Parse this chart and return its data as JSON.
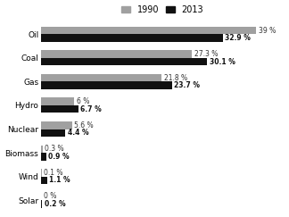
{
  "categories": [
    "Oil",
    "Coal",
    "Gas",
    "Hydro",
    "Nuclear",
    "Biomass",
    "Wind",
    "Solar"
  ],
  "values_1990": [
    39.0,
    27.3,
    21.8,
    6.0,
    5.6,
    0.3,
    0.1,
    0.0
  ],
  "values_2013": [
    32.9,
    30.1,
    23.7,
    6.7,
    4.4,
    0.9,
    1.1,
    0.2
  ],
  "labels_1990": [
    "39 %",
    "27.3 %",
    "21.8 %",
    "6 %",
    "5.6 %",
    "0.3 %",
    "0.1 %",
    "0 %"
  ],
  "labels_2013": [
    "32.9 %",
    "30.1 %",
    "23.7 %",
    "6.7 %",
    "4.4 %",
    "0.9 %",
    "1.1 %",
    "0.2 %"
  ],
  "color_1990": "#a0a0a0",
  "color_2013": "#111111",
  "legend_1990": "1990",
  "legend_2013": "2013",
  "xlim": [
    0,
    44
  ],
  "bar_height": 0.32,
  "background_color": "#ffffff",
  "label_fontsize": 5.5,
  "axis_label_fontsize": 6.5,
  "legend_fontsize": 7.0
}
